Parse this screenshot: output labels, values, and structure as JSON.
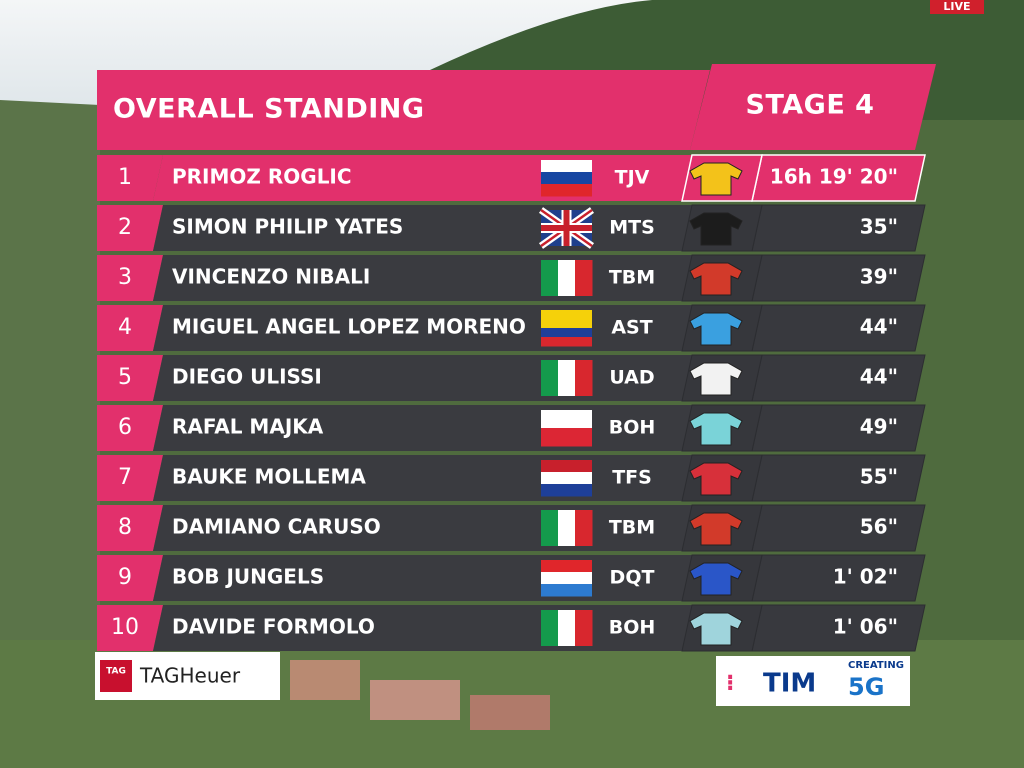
{
  "header": {
    "title": "OVERALL STANDING",
    "stage": "STAGE 4",
    "live": "LIVE"
  },
  "table": {
    "rows": [
      {
        "rank": 1,
        "name": "PRIMOZ ROGLIC",
        "team": "TJV",
        "time": "16h 19' 20\""
      },
      {
        "rank": 2,
        "name": "SIMON PHILIP YATES",
        "team": "MTS",
        "time": "35\""
      },
      {
        "rank": 3,
        "name": "VINCENZO NIBALI",
        "team": "TBM",
        "time": "39\""
      },
      {
        "rank": 4,
        "name": "MIGUEL ANGEL LOPEZ MORENO",
        "team": "AST",
        "time": "44\""
      },
      {
        "rank": 5,
        "name": "DIEGO ULISSI",
        "team": "UAD",
        "time": "44\""
      },
      {
        "rank": 6,
        "name": "RAFAL MAJKA",
        "team": "BOH",
        "time": "49\""
      },
      {
        "rank": 7,
        "name": "BAUKE MOLLEMA",
        "team": "TFS",
        "time": "55\""
      },
      {
        "rank": 8,
        "name": "DAMIANO CARUSO",
        "team": "TBM",
        "time": "56\""
      },
      {
        "rank": 9,
        "name": "BOB JUNGELS",
        "team": "DQT",
        "time": "1' 02\""
      },
      {
        "rank": 10,
        "name": "DAVIDE FORMOLO",
        "team": "BOH",
        "time": "1' 06\""
      }
    ]
  },
  "sponsors": {
    "left": "TAGHeuer",
    "left_badge": "TAG",
    "right": "TIM",
    "right_tag": "CREATING",
    "right_5g": "5G"
  }
}
